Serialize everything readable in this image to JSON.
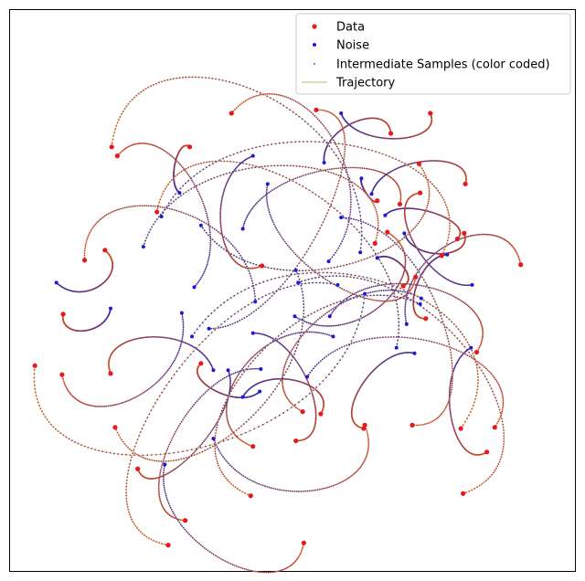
{
  "chart_data": {
    "type": "scatter",
    "title": "",
    "xlabel": "",
    "ylabel": "",
    "xlim": [
      -2.5,
      2.5
    ],
    "ylim": [
      -2.5,
      2.5
    ],
    "axis_ticks_visible": false,
    "grid": false,
    "legend": {
      "placement": "top-right",
      "entries": [
        {
          "label": "Data",
          "color": "#e41a1c",
          "marker": "dot"
        },
        {
          "label": "Noise",
          "color": "#1a1ad6",
          "marker": "dot"
        },
        {
          "label": "Intermediate Samples (color coded)",
          "color": "#c0462c",
          "marker": "small-dot"
        },
        {
          "label": "Trajectory",
          "color": "#d8cfa0",
          "marker": "line"
        }
      ]
    },
    "colors": {
      "data": "#e41a1c",
      "noise": "#1a1ad6",
      "intermediate_start": "#3a2aa0",
      "intermediate_end": "#d24a1a",
      "trajectory": "#d8cfa0"
    },
    "trajectories": [
      {
        "noise": [
          0.43,
          1.58
        ],
        "data": [
          1.22,
          1.58
        ],
        "bend": 0.25
      },
      {
        "noise": [
          0.28,
          1.14
        ],
        "data": [
          0.87,
          1.4
        ],
        "bend": -0.3
      },
      {
        "noise": [
          0.61,
          1.0
        ],
        "data": [
          0.75,
          0.8
        ],
        "bend": 0.15
      },
      {
        "noise": [
          0.82,
          0.67
        ],
        "data": [
          1.46,
          0.46
        ],
        "bend": -0.2
      },
      {
        "noise": [
          0.99,
          0.51
        ],
        "data": [
          1.52,
          0.51
        ],
        "bend": 0.3
      },
      {
        "noise": [
          1.59,
          0.05
        ],
        "data": [
          1.13,
          0.87
        ],
        "bend": -0.25
      },
      {
        "noise": [
          0.36,
          -0.41
        ],
        "data": [
          -0.35,
          -1.39
        ],
        "bend": 0.35
      },
      {
        "noise": [
          -0.29,
          -0.9
        ],
        "data": [
          -0.81,
          -0.65
        ],
        "bend": -0.25
      },
      {
        "noise": [
          -0.74,
          -0.34
        ],
        "data": [
          0.21,
          1.61
        ],
        "bend": 0.2
      },
      {
        "noise": [
          -0.81,
          0.58
        ],
        "data": [
          1.12,
          1.13
        ],
        "bend": 0.3
      },
      {
        "noise": [
          -1.32,
          0.39
        ],
        "data": [
          0.73,
          0.42
        ],
        "bend": -0.3
      },
      {
        "noise": [
          -2.09,
          0.07
        ],
        "data": [
          -1.66,
          0.36
        ],
        "bend": 0.4
      },
      {
        "noise": [
          -1.61,
          -0.16
        ],
        "data": [
          -2.03,
          -0.21
        ],
        "bend": -0.35
      },
      {
        "noise": [
          -0.7,
          -0.71
        ],
        "data": [
          -1.61,
          -0.74
        ],
        "bend": 0.3
      },
      {
        "noise": [
          -0.35,
          -0.38
        ],
        "data": [
          0.03,
          -1.34
        ],
        "bend": -0.25
      },
      {
        "noise": [
          0.02,
          -0.23
        ],
        "data": [
          0.84,
          0.52
        ],
        "bend": 0.35
      },
      {
        "noise": [
          0.33,
          -0.23
        ],
        "data": [
          1.63,
          -0.55
        ],
        "bend": -0.3
      },
      {
        "noise": [
          0.6,
          0.34
        ],
        "data": [
          -1.6,
          1.28
        ],
        "bend": 0.35
      },
      {
        "noise": [
          -0.44,
          0.55
        ],
        "data": [
          0.95,
          0.77
        ],
        "bend": -0.25
      },
      {
        "noise": [
          -0.87,
          0.03
        ],
        "data": [
          -1.55,
          1.2
        ],
        "bend": 0.3
      },
      {
        "noise": [
          -1.0,
          0.87
        ],
        "data": [
          -0.91,
          1.28
        ],
        "bend": -0.2
      },
      {
        "noise": [
          -0.22,
          0.95
        ],
        "data": [
          1.09,
          0.12
        ],
        "bend": 0.25
      },
      {
        "noise": [
          0.32,
          0.26
        ],
        "data": [
          -0.54,
          1.58
        ],
        "bend": 0.35
      },
      {
        "noise": [
          0.75,
          0.29
        ],
        "data": [
          0.98,
          0.04
        ],
        "bend": -0.3
      },
      {
        "noise": [
          1.37,
          0.32
        ],
        "data": [
          1.18,
          -0.25
        ],
        "bend": 0.25
      },
      {
        "noise": [
          0.05,
          0.07
        ],
        "data": [
          1.51,
          -1.81
        ],
        "bend": -0.3
      },
      {
        "noise": [
          1.14,
          -0.07
        ],
        "data": [
          0.09,
          -1.08
        ],
        "bend": 0.3
      },
      {
        "noise": [
          1.01,
          -0.3
        ],
        "data": [
          2.02,
          0.23
        ],
        "bend": -0.35
      },
      {
        "noise": [
          1.58,
          -0.51
        ],
        "data": [
          1.72,
          -1.44
        ],
        "bend": 0.25
      },
      {
        "noise": [
          0.13,
          -0.77
        ],
        "data": [
          1.79,
          -1.22
        ],
        "bend": -0.3
      },
      {
        "noise": [
          -0.28,
          -0.7
        ],
        "data": [
          -0.95,
          -2.05
        ],
        "bend": 0.25
      },
      {
        "noise": [
          -0.98,
          -0.2
        ],
        "data": [
          -2.04,
          -0.75
        ],
        "bend": -0.35
      },
      {
        "noise": [
          -1.13,
          -1.55
        ],
        "data": [
          0.1,
          -2.25
        ],
        "bend": 0.3
      },
      {
        "noise": [
          -0.57,
          -0.71
        ],
        "data": [
          -1.37,
          -1.59
        ],
        "bend": -0.2
      },
      {
        "noise": [
          -0.7,
          -1.32
        ],
        "data": [
          0.64,
          -1.2
        ],
        "bend": 0.35
      },
      {
        "noise": [
          0.03,
          0.18
        ],
        "data": [
          -1.57,
          -1.22
        ],
        "bend": -0.3
      },
      {
        "noise": [
          0.4,
          0.05
        ],
        "data": [
          -1.1,
          -2.27
        ],
        "bend": 0.25
      },
      {
        "noise": [
          -0.44,
          -0.95
        ],
        "data": [
          0.25,
          -1.1
        ],
        "bend": -0.3
      },
      {
        "noise": [
          0.92,
          -0.51
        ],
        "data": [
          -1.2,
          0.7
        ],
        "bend": 0.3
      },
      {
        "noise": [
          0.7,
          0.86
        ],
        "data": [
          1.53,
          0.95
        ],
        "bend": -0.25
      },
      {
        "noise": [
          1.13,
          -0.12
        ],
        "data": [
          -0.37,
          -1.83
        ],
        "bend": 0.3
      },
      {
        "noise": [
          0.43,
          0.65
        ],
        "data": [
          1.06,
          -1.2
        ],
        "bend": -0.25
      },
      {
        "noise": [
          -0.35,
          1.2
        ],
        "data": [
          -0.27,
          0.22
        ],
        "bend": 0.3
      },
      {
        "noise": [
          -0.89,
          -0.41
        ],
        "data": [
          1.49,
          -1.23
        ],
        "bend": -0.35
      },
      {
        "noise": [
          1.08,
          -0.56
        ],
        "data": [
          0.63,
          -1.23
        ],
        "bend": 0.25
      },
      {
        "noise": [
          -1.16,
          0.66
        ],
        "data": [
          1.32,
          0.31
        ],
        "bend": -0.3
      },
      {
        "noise": [
          -0.33,
          -0.1
        ],
        "data": [
          -1.84,
          0.27
        ],
        "bend": 0.35
      },
      {
        "noise": [
          0.64,
          -0.03
        ],
        "data": [
          -2.28,
          -0.67
        ],
        "bend": -0.3
      }
    ]
  }
}
